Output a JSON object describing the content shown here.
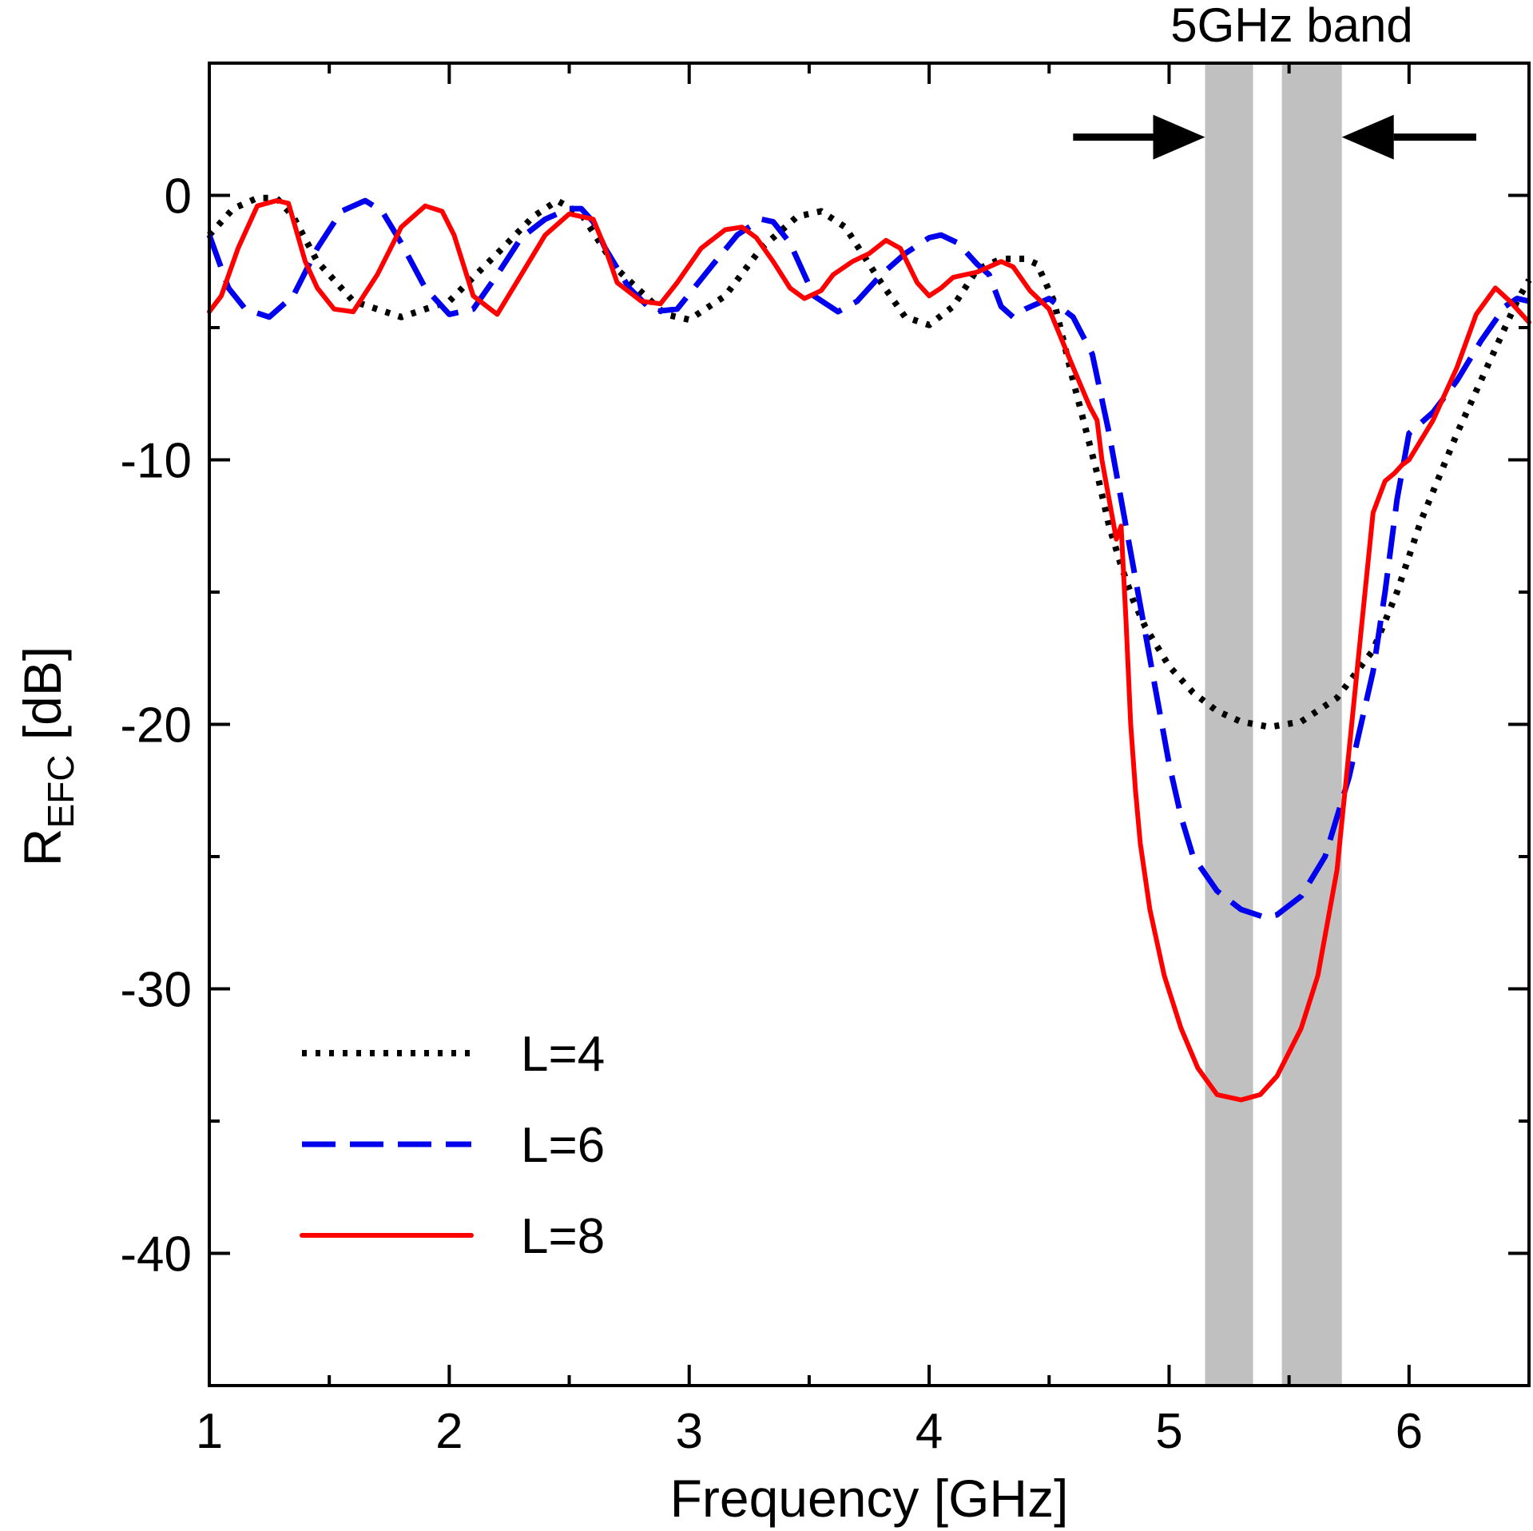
{
  "chart_data": {
    "type": "line",
    "title": "",
    "xlabel": "Frequency [GHz]",
    "ylabel": {
      "main": "R",
      "subscript": "EFC",
      "unit": " [dB]"
    },
    "xlim": [
      1,
      6.5
    ],
    "ylim": [
      -45,
      5
    ],
    "xticks": [
      1,
      2,
      3,
      4,
      5,
      6
    ],
    "xtick_labels": [
      "1",
      "2",
      "3",
      "4",
      "5",
      "6"
    ],
    "xminor_step": 0.5,
    "yticks": [
      0,
      -10,
      -20,
      -30,
      -40
    ],
    "ytick_labels": [
      "0",
      "-10",
      "-20",
      "-30",
      "-40"
    ],
    "yminor_step": 5,
    "grid": false,
    "legend_position": "bottom-left",
    "bands": [
      {
        "x0": 5.15,
        "x1": 5.35,
        "color": "#c0c0c0"
      },
      {
        "x0": 5.47,
        "x1": 5.72,
        "color": "#c0c0c0"
      }
    ],
    "band_annotation": {
      "text": "5GHz band",
      "left_arrow": [
        4.6,
        5.15
      ],
      "right_arrow": [
        6.28,
        5.72
      ],
      "y": 2.2
    },
    "series": [
      {
        "name": "L=4",
        "color": "#000000",
        "dash": "dotted",
        "x": [
          1.0,
          1.1,
          1.2,
          1.28,
          1.35,
          1.45,
          1.6,
          1.8,
          2.0,
          2.2,
          2.35,
          2.45,
          2.55,
          2.7,
          2.9,
          3.0,
          3.15,
          3.3,
          3.45,
          3.55,
          3.65,
          3.8,
          3.9,
          4.0,
          4.1,
          4.2,
          4.3,
          4.4,
          4.45,
          4.52,
          4.6,
          4.7,
          4.75,
          4.8,
          4.85,
          4.9,
          5.0,
          5.1,
          5.2,
          5.3,
          5.42,
          5.55,
          5.7,
          5.85,
          5.95,
          6.05,
          6.2,
          6.35,
          6.45,
          6.5
        ],
        "y": [
          -1.5,
          -0.5,
          -0.1,
          -0.1,
          -0.8,
          -2.5,
          -4.0,
          -4.6,
          -4.0,
          -2.2,
          -0.8,
          -0.2,
          -0.7,
          -2.8,
          -4.5,
          -4.7,
          -3.8,
          -2.0,
          -0.8,
          -0.6,
          -1.2,
          -3.3,
          -4.6,
          -4.9,
          -4.2,
          -2.8,
          -2.4,
          -2.4,
          -2.6,
          -4.0,
          -7.0,
          -10.5,
          -12.5,
          -14.0,
          -15.3,
          -16.3,
          -17.8,
          -18.8,
          -19.5,
          -19.9,
          -20.1,
          -19.9,
          -19.0,
          -17.2,
          -15.0,
          -12.3,
          -9.0,
          -6.0,
          -4.0,
          -3.2
        ]
      },
      {
        "name": "L=6",
        "color": "#0000ee",
        "dash": "dashed",
        "x": [
          1.0,
          1.08,
          1.15,
          1.25,
          1.35,
          1.45,
          1.55,
          1.65,
          1.72,
          1.8,
          1.9,
          2.0,
          2.1,
          2.2,
          2.3,
          2.4,
          2.5,
          2.55,
          2.6,
          2.65,
          2.75,
          2.85,
          2.95,
          3.1,
          3.2,
          3.3,
          3.35,
          3.42,
          3.52,
          3.62,
          3.7,
          3.8,
          3.9,
          4.0,
          4.05,
          4.12,
          4.2,
          4.25,
          4.3,
          4.35,
          4.4,
          4.5,
          4.6,
          4.68,
          4.75,
          4.8,
          4.85,
          4.9,
          4.95,
          5.0,
          5.05,
          5.1,
          5.2,
          5.3,
          5.4,
          5.45,
          5.55,
          5.65,
          5.75,
          5.85,
          5.9,
          5.95,
          6.0,
          6.1,
          6.2,
          6.3,
          6.4,
          6.45,
          6.5
        ],
        "y": [
          -1.5,
          -3.5,
          -4.3,
          -4.6,
          -3.8,
          -2.0,
          -0.6,
          -0.2,
          -0.6,
          -1.8,
          -3.5,
          -4.5,
          -4.3,
          -3.0,
          -1.6,
          -0.9,
          -0.5,
          -0.5,
          -1.0,
          -2.0,
          -3.5,
          -4.4,
          -4.3,
          -2.6,
          -1.5,
          -0.9,
          -1.0,
          -1.8,
          -3.8,
          -4.4,
          -4.0,
          -3.0,
          -2.2,
          -1.6,
          -1.5,
          -1.8,
          -2.6,
          -3.0,
          -4.2,
          -4.6,
          -4.3,
          -3.9,
          -4.6,
          -6.0,
          -9.0,
          -11.5,
          -14.0,
          -16.5,
          -19.0,
          -21.5,
          -23.5,
          -25.0,
          -26.3,
          -27.0,
          -27.3,
          -27.2,
          -26.5,
          -25.0,
          -22.0,
          -18.0,
          -15.0,
          -11.5,
          -9.0,
          -8.2,
          -7.0,
          -5.5,
          -4.2,
          -3.9,
          -4.0
        ]
      },
      {
        "name": "L=8",
        "color": "#ff0000",
        "dash": "solid",
        "x": [
          1.0,
          1.05,
          1.12,
          1.2,
          1.28,
          1.33,
          1.4,
          1.45,
          1.52,
          1.6,
          1.7,
          1.8,
          1.9,
          1.97,
          2.02,
          2.1,
          2.2,
          2.3,
          2.4,
          2.5,
          2.6,
          2.65,
          2.7,
          2.8,
          2.88,
          2.95,
          3.05,
          3.15,
          3.22,
          3.28,
          3.35,
          3.42,
          3.48,
          3.55,
          3.6,
          3.68,
          3.75,
          3.82,
          3.88,
          3.95,
          4.0,
          4.05,
          4.1,
          4.2,
          4.3,
          4.35,
          4.42,
          4.5,
          4.6,
          4.67,
          4.7,
          4.72,
          4.78,
          4.8,
          4.82,
          4.84,
          4.86,
          4.88,
          4.92,
          4.98,
          5.05,
          5.12,
          5.2,
          5.3,
          5.38,
          5.45,
          5.55,
          5.62,
          5.7,
          5.75,
          5.8,
          5.85,
          5.9,
          5.94,
          5.97,
          6.0,
          6.1,
          6.2,
          6.28,
          6.36,
          6.42,
          6.5
        ],
        "y": [
          -4.4,
          -3.8,
          -2.0,
          -0.4,
          -0.2,
          -0.3,
          -2.5,
          -3.5,
          -4.3,
          -4.4,
          -3.0,
          -1.2,
          -0.4,
          -0.6,
          -1.5,
          -3.8,
          -4.5,
          -3.0,
          -1.5,
          -0.7,
          -0.9,
          -2.0,
          -3.3,
          -4.0,
          -4.1,
          -3.3,
          -2.0,
          -1.3,
          -1.2,
          -1.6,
          -2.5,
          -3.5,
          -3.9,
          -3.6,
          -3.0,
          -2.5,
          -2.2,
          -1.7,
          -2.0,
          -3.3,
          -3.8,
          -3.5,
          -3.1,
          -2.9,
          -2.5,
          -2.7,
          -3.6,
          -4.3,
          -6.5,
          -8.0,
          -8.5,
          -10.0,
          -13.0,
          -12.5,
          -16.0,
          -20.0,
          -22.5,
          -24.5,
          -27.0,
          -29.5,
          -31.5,
          -33.0,
          -34.0,
          -34.2,
          -34.0,
          -33.3,
          -31.5,
          -29.5,
          -25.5,
          -21.0,
          -16.5,
          -12.0,
          -10.8,
          -10.5,
          -10.2,
          -10.0,
          -8.5,
          -6.5,
          -4.5,
          -3.5,
          -4.0,
          -4.8
        ]
      }
    ]
  }
}
